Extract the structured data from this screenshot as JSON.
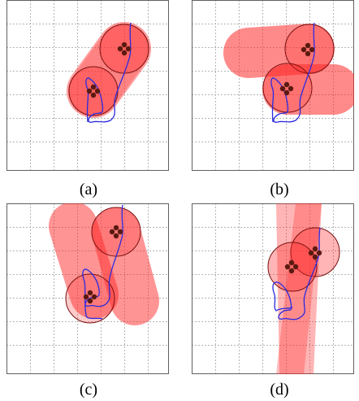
{
  "figure": {
    "panels": [
      {
        "id": "a",
        "caption": "(a)"
      },
      {
        "id": "b",
        "caption": "(b)"
      },
      {
        "id": "c",
        "caption": "(c)"
      },
      {
        "id": "d",
        "caption": "(d)"
      }
    ]
  },
  "colors": {
    "grid": "#b4b4b4",
    "capsule_fill": "#ff2a2a",
    "capsule_stroke": "#b01010",
    "trajectory": "#2a2ae0",
    "marker": "#5a1a10"
  }
}
